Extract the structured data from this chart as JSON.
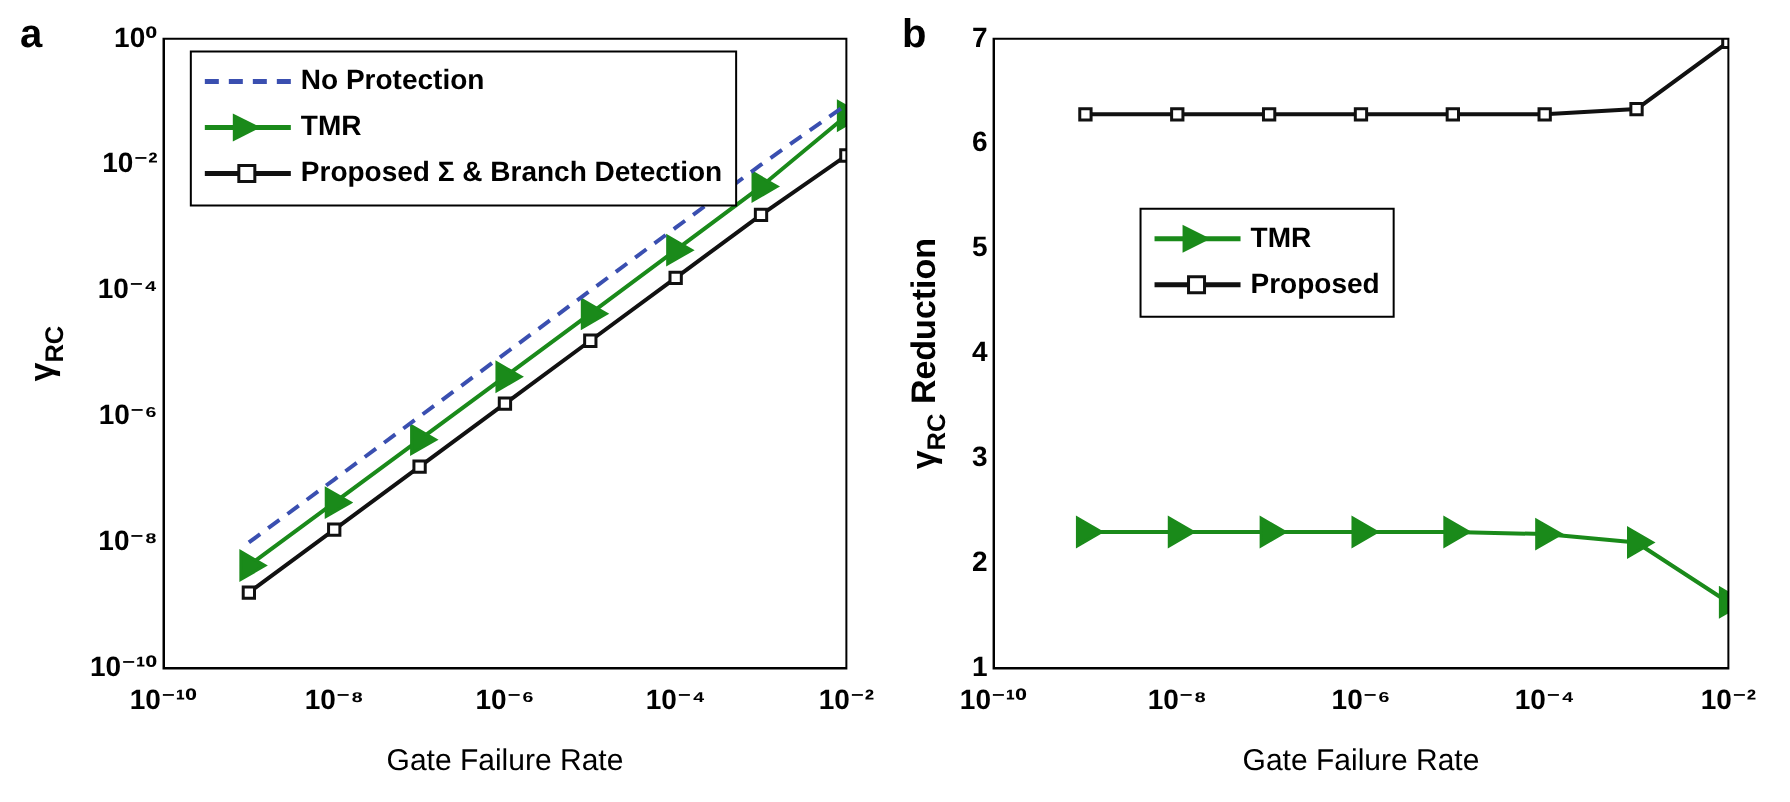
{
  "chart_data": [
    {
      "type": "line",
      "title": "a",
      "xlabel": "Gate Failure Rate",
      "ylabel": "γ$_{RC}$",
      "log": "xy",
      "grid": false,
      "legend": "top left",
      "x": [
        1e-09,
        1e-08,
        1e-07,
        1e-06,
        1e-05,
        0.0001,
        0.001,
        0.01
      ],
      "xlim": [
        1e-10,
        0.01
      ],
      "xticks": [
        {
          "value": 1e-10,
          "label": "10⁻¹⁰"
        },
        {
          "value": 1e-08,
          "label": "10⁻⁸"
        },
        {
          "value": 1e-06,
          "label": "10⁻⁶"
        },
        {
          "value": 0.0001,
          "label": "10⁻⁴"
        },
        {
          "value": 0.01,
          "label": "10⁻²"
        }
      ],
      "ylim": [
        1e-10,
        1
      ],
      "yticks": [
        {
          "value": 1e-10,
          "label": "10⁻¹⁰"
        },
        {
          "value": 1e-08,
          "label": "10⁻⁸"
        },
        {
          "value": 1e-06,
          "label": "10⁻⁶"
        },
        {
          "value": 0.0001,
          "label": "10⁻⁴"
        },
        {
          "value": 0.01,
          "label": "10⁻²"
        },
        {
          "value": 1,
          "label": "10⁰"
        }
      ],
      "series": [
        {
          "name": "No Protection",
          "color": "#3a4fb0",
          "marker": "none",
          "line_style": "dashed",
          "values": [
            1e-08,
            1e-07,
            1e-06,
            1e-05,
            0.0001,
            0.001,
            0.01,
            0.09
          ]
        },
        {
          "name": "TMR",
          "color": "#1a8a1a",
          "marker": "triangle",
          "line_style": "solid",
          "values": [
            4.3e-09,
            4.3e-08,
            4.3e-07,
            4.3e-06,
            4.3e-05,
            0.00044,
            0.0045,
            0.06
          ]
        },
        {
          "name": "Proposed Σ & Branch Detection",
          "color": "#111111",
          "marker": "square",
          "line_style": "solid",
          "values": [
            1.6e-09,
            1.6e-08,
            1.6e-07,
            1.6e-06,
            1.6e-05,
            0.00016,
            0.0016,
            0.014
          ]
        }
      ]
    },
    {
      "type": "line",
      "title": "b",
      "xlabel": "Gate Failure Rate",
      "ylabel": "γ$_{RC}$ Reduction",
      "log": "x",
      "grid": false,
      "legend": "center",
      "x": [
        1e-09,
        1e-08,
        1e-07,
        1e-06,
        1e-05,
        0.0001,
        0.001,
        0.01
      ],
      "xlim": [
        1e-10,
        0.01
      ],
      "xticks": [
        {
          "value": 1e-10,
          "label": "10⁻¹⁰"
        },
        {
          "value": 1e-08,
          "label": "10⁻⁸"
        },
        {
          "value": 1e-06,
          "label": "10⁻⁶"
        },
        {
          "value": 0.0001,
          "label": "10⁻⁴"
        },
        {
          "value": 0.01,
          "label": "10⁻²"
        }
      ],
      "ylim": [
        1,
        7
      ],
      "yticks": [
        1,
        2,
        3,
        4,
        5,
        6,
        7
      ],
      "series": [
        {
          "name": "TMR",
          "color": "#1a8a1a",
          "marker": "triangle",
          "line_style": "solid",
          "values": [
            2.3,
            2.3,
            2.3,
            2.3,
            2.3,
            2.28,
            2.2,
            1.63
          ]
        },
        {
          "name": "Proposed",
          "color": "#111111",
          "marker": "square",
          "line_style": "solid",
          "values": [
            6.28,
            6.28,
            6.28,
            6.28,
            6.28,
            6.28,
            6.33,
            6.97
          ]
        }
      ]
    }
  ]
}
